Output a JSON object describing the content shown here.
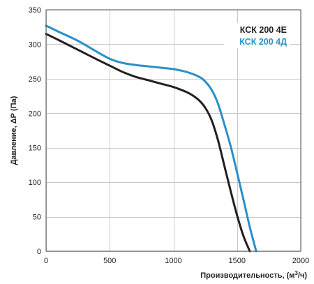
{
  "chart_data": {
    "type": "line",
    "title": "",
    "xlabel": "Производительность, (м",
    "xlabel_sup": "3",
    "xlabel_end": "/ч)",
    "ylabel": "Давление, ΔР (Па)",
    "xlim": [
      0,
      2000
    ],
    "ylim": [
      0,
      350
    ],
    "x_ticks": [
      0,
      500,
      1000,
      1500,
      2000
    ],
    "y_ticks": [
      0,
      50,
      100,
      150,
      200,
      250,
      300,
      350
    ],
    "grid": true,
    "legend_position": "top-right",
    "series": [
      {
        "name": "КСК 200 4Е",
        "color": "#231f20",
        "x": [
          0,
          100,
          250,
          400,
          500,
          600,
          700,
          800,
          900,
          1000,
          1100,
          1150,
          1200,
          1250,
          1300,
          1350,
          1400,
          1450,
          1500,
          1550,
          1600
        ],
        "y": [
          315,
          306,
          292,
          278,
          269,
          260,
          253,
          248,
          243,
          238,
          231,
          226,
          219,
          208,
          190,
          161,
          124,
          87,
          52,
          22,
          0
        ]
      },
      {
        "name": "КСК 200 4Д",
        "color": "#2a8fc8",
        "x": [
          0,
          100,
          250,
          400,
          500,
          600,
          700,
          800,
          900,
          1000,
          1100,
          1200,
          1250,
          1300,
          1350,
          1400,
          1450,
          1500,
          1550,
          1600,
          1650
        ],
        "y": [
          327,
          318,
          305,
          289,
          279,
          273,
          270,
          268,
          266,
          264,
          260,
          253,
          246,
          234,
          214,
          184,
          152,
          114,
          75,
          35,
          0
        ]
      }
    ]
  }
}
